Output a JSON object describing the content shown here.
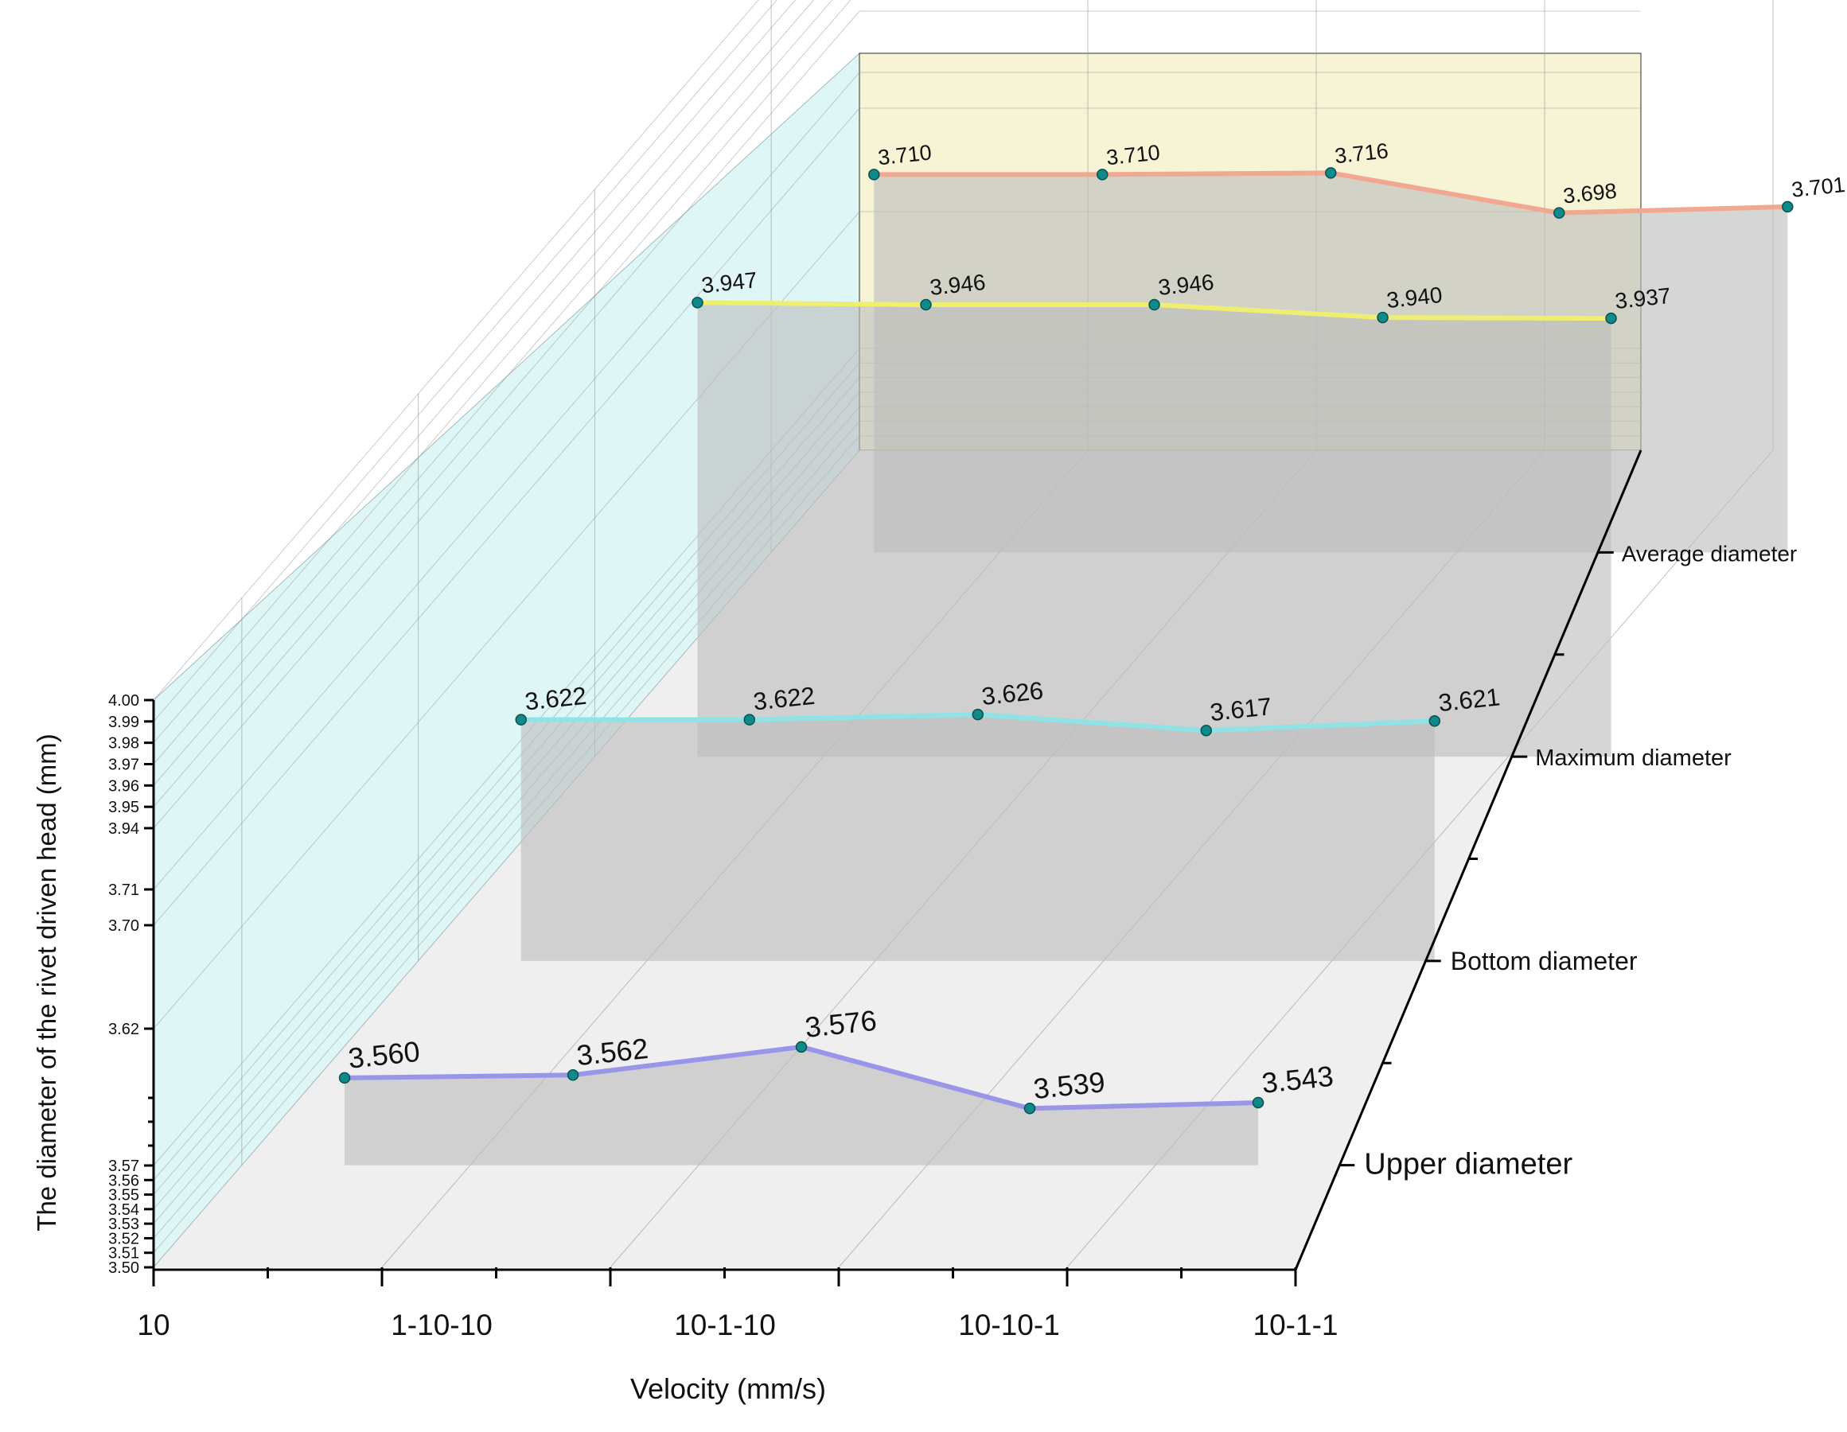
{
  "chart_data": {
    "type": "line",
    "title": "",
    "xlabel": "Velocity (mm/s)",
    "ylabel": "The diameter of the rivet driven head (mm)",
    "categories": [
      "10",
      "1-10-10",
      "10-1-10",
      "10-10-1",
      "10-1-1"
    ],
    "y_ticks": [
      "4.00",
      "3.99",
      "3.98",
      "3.97",
      "3.96",
      "3.95",
      "3.94",
      "3.71",
      "3.70",
      "3.62",
      "3.57",
      "3.56",
      "3.55",
      "3.54",
      "3.53",
      "3.52",
      "3.51",
      "3.50"
    ],
    "y_axis_break": true,
    "series": [
      {
        "name": "Upper diameter",
        "values": [
          3.56,
          3.562,
          3.576,
          3.539,
          3.543
        ],
        "labels": [
          "3.560",
          "3.562",
          "3.576",
          "3.539",
          "3.543"
        ],
        "color": "#9a95e8"
      },
      {
        "name": "Bottom diameter",
        "values": [
          3.622,
          3.622,
          3.626,
          3.617,
          3.621
        ],
        "labels": [
          "3.622",
          "3.622",
          "3.626",
          "3.617",
          "3.621"
        ],
        "color": "#8fe3e6"
      },
      {
        "name": "Maximum diameter",
        "values": [
          3.947,
          3.946,
          3.946,
          3.94,
          3.937
        ],
        "labels": [
          "3.947",
          "3.946",
          "3.946",
          "3.940",
          "3.937"
        ],
        "color": "#eeee70"
      },
      {
        "name": "Average diameter",
        "values": [
          3.71,
          3.71,
          3.716,
          3.698,
          3.701
        ],
        "labels": [
          "3.710",
          "3.710",
          "3.716",
          "3.698",
          "3.701"
        ],
        "color": "#f2a890"
      }
    ],
    "colors": {
      "left_wall": "#dff6f6",
      "back_wall": "#f7f4d6",
      "floor": "#efefef",
      "ribbon": "#bdbdbd",
      "marker": "#0e8a8a"
    }
  }
}
